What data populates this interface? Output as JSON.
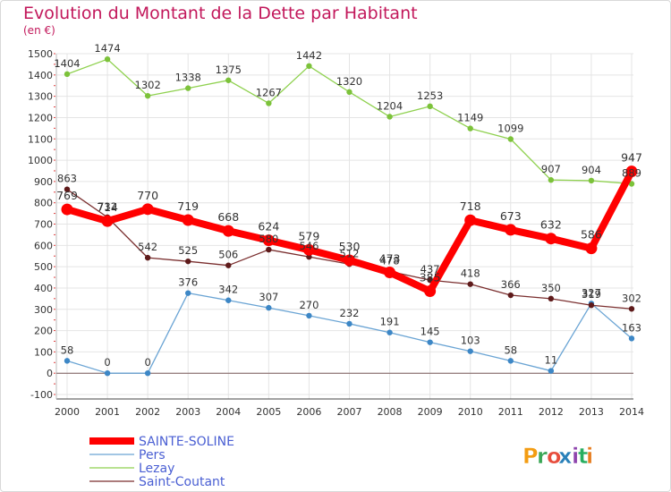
{
  "title": "Evolution du Montant de la Dette par Habitant",
  "subtitle": "(en €)",
  "brand": "Proxiti",
  "colors": {
    "title": "#c2185b",
    "grid": "#e4e4e4",
    "axis": "#444444",
    "zero_line": "#7b5a5a",
    "legend_text": "#4a5fd3"
  },
  "chart_data": {
    "type": "line",
    "x": [
      "2000",
      "2001",
      "2002",
      "2003",
      "2004",
      "2005",
      "2006",
      "2007",
      "2008",
      "2009",
      "2010",
      "2011",
      "2012",
      "2013",
      "2014"
    ],
    "ylim": [
      -100,
      1500
    ],
    "yticks": [
      -100,
      0,
      100,
      200,
      300,
      400,
      500,
      600,
      700,
      800,
      900,
      1000,
      1100,
      1200,
      1300,
      1400,
      1500
    ],
    "grid": true,
    "legend_position": "bottom-left",
    "series": [
      {
        "name": "Lezay",
        "color": "#8fd14f",
        "dot": "#7cc23a",
        "width": 1.3,
        "r": 3.2,
        "values": [
          1404,
          1474,
          1302,
          1338,
          1375,
          1267,
          1442,
          1320,
          1204,
          1253,
          1149,
          1099,
          907,
          904,
          889
        ],
        "labels": [
          "1404",
          "1474",
          "1302",
          "1338",
          "1375",
          "1267",
          "1442",
          "1320",
          "1204",
          "1253",
          "1149",
          "1099",
          "907",
          "904",
          "889"
        ]
      },
      {
        "name": "Pers",
        "color": "#6aa4d4",
        "dot": "#3d87c6",
        "width": 1.3,
        "r": 3.2,
        "values": [
          58,
          0,
          0,
          376,
          342,
          307,
          270,
          232,
          191,
          145,
          103,
          58,
          11,
          327,
          163
        ],
        "labels": [
          "58",
          "0",
          "0",
          "376",
          "342",
          "307",
          "270",
          "232",
          "191",
          "145",
          "103",
          "58",
          "11",
          "327",
          "163"
        ]
      },
      {
        "name": "Saint-Coutant",
        "color": "#7a2e2e",
        "dot": "#5e1a1a",
        "width": 1.3,
        "r": 3.2,
        "values": [
          863,
          732,
          542,
          525,
          506,
          580,
          546,
          512,
          478,
          437,
          418,
          366,
          350,
          319,
          302
        ],
        "labels": [
          "863",
          "732",
          "542",
          "525",
          "506",
          "580",
          "546",
          "512",
          "478",
          "437",
          "418",
          "366",
          "350",
          "319",
          "302"
        ]
      },
      {
        "name": "SAINTE-SOLINE",
        "color": "#ff0000",
        "dot": "#ff0000",
        "width": 8,
        "r": 6.5,
        "values": [
          769,
          714,
          770,
          719,
          668,
          624,
          579,
          530,
          473,
          385,
          718,
          673,
          632,
          586,
          947
        ],
        "labels": [
          "769",
          "714",
          "770",
          "719",
          "668",
          "624",
          "579",
          "530",
          "473",
          "385",
          "718",
          "673",
          "632",
          "586",
          "947"
        ]
      }
    ],
    "legend": [
      {
        "name": "SAINTE-SOLINE",
        "color": "#ff0000",
        "width": 8
      },
      {
        "name": "Pers",
        "color": "#6aa4d4",
        "width": 1.3
      },
      {
        "name": "Lezay",
        "color": "#8fd14f",
        "width": 1.3
      },
      {
        "name": "Saint-Coutant",
        "color": "#7a2e2e",
        "width": 1.3
      }
    ]
  }
}
